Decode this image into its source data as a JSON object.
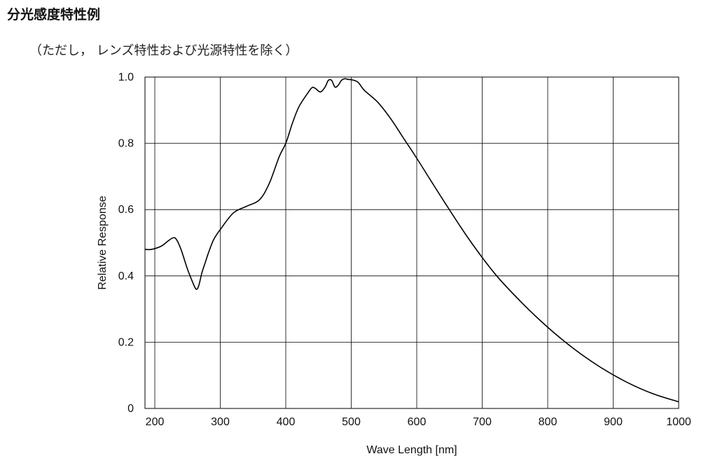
{
  "heading": "分光感度特性例",
  "note": "（ただし， レンズ特性および光源特性を除く）",
  "chart_data": {
    "type": "line",
    "xlabel": "Wave Length [nm]",
    "ylabel": "Relative Response",
    "xlim": [
      185,
      1000
    ],
    "ylim": [
      0,
      1.0
    ],
    "x_ticks": [
      200,
      300,
      400,
      500,
      600,
      700,
      800,
      900,
      1000
    ],
    "x_tick_labels": [
      "200",
      "300",
      "400",
      "500",
      "600",
      "700",
      "800",
      "900",
      "1000"
    ],
    "y_ticks": [
      0,
      0.2,
      0.4,
      0.6,
      0.8,
      1.0
    ],
    "y_tick_labels": [
      "0",
      "0.2",
      "0.4",
      "0.6",
      "0.8",
      "1.0"
    ],
    "grid": true,
    "line_color": "#000000",
    "series": [
      {
        "x": [
          185,
          195,
          210,
          220,
          228,
          233,
          240,
          250,
          258,
          263,
          267,
          272,
          277,
          282,
          290,
          300,
          320,
          340,
          360,
          375,
          390,
          400,
          410,
          420,
          433,
          440,
          445,
          453,
          460,
          465,
          470,
          475,
          480,
          485,
          490,
          495,
          500,
          510,
          520,
          540,
          560,
          580,
          600,
          640,
          680,
          720,
          760,
          800,
          840,
          880,
          920,
          960,
          1000
        ],
        "y": [
          0.48,
          0.48,
          0.49,
          0.505,
          0.515,
          0.51,
          0.48,
          0.42,
          0.38,
          0.36,
          0.37,
          0.41,
          0.44,
          0.47,
          0.51,
          0.54,
          0.59,
          0.61,
          0.63,
          0.68,
          0.76,
          0.8,
          0.86,
          0.91,
          0.95,
          0.968,
          0.966,
          0.955,
          0.97,
          0.99,
          0.99,
          0.97,
          0.975,
          0.99,
          0.995,
          0.993,
          0.992,
          0.985,
          0.96,
          0.925,
          0.875,
          0.815,
          0.755,
          0.63,
          0.51,
          0.405,
          0.32,
          0.245,
          0.18,
          0.125,
          0.08,
          0.045,
          0.02
        ]
      }
    ]
  }
}
